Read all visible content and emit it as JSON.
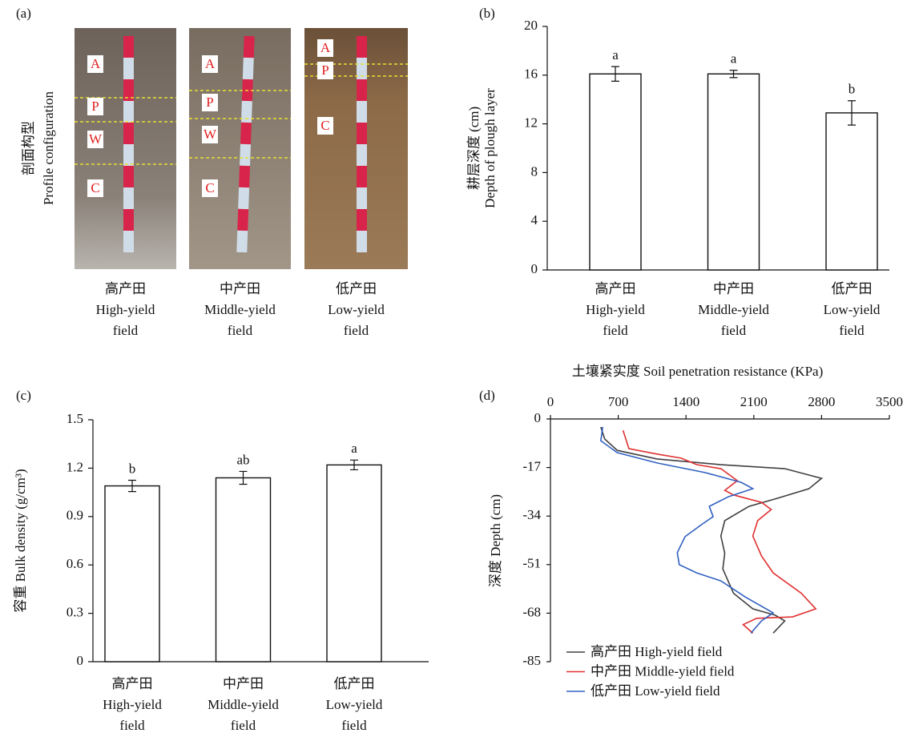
{
  "profile": {
    "label": "(a)",
    "y_label": [
      "剖面构型",
      "Profile configuration"
    ],
    "photos": [
      {
        "layers": [
          "A",
          "P",
          "W",
          "C"
        ],
        "caption": [
          "高产田",
          "High-yield",
          "field"
        ]
      },
      {
        "layers": [
          "A",
          "P",
          "W",
          "C"
        ],
        "caption": [
          "中产田",
          "Middle-yield",
          "field"
        ]
      },
      {
        "layers": [
          "A",
          "P",
          "C"
        ],
        "caption": [
          "低产田",
          "Low-yield",
          "field"
        ]
      }
    ]
  },
  "chart_data": [
    {
      "type": "bar",
      "label": "(b)",
      "y_label": [
        "耕层深度 (cm)",
        "Depth of plough layer"
      ],
      "categories": [
        [
          "高产田",
          "High-yield",
          "field"
        ],
        [
          "中产田",
          "Middle-yield",
          "field"
        ],
        [
          "低产田",
          "Low-yield",
          "field"
        ]
      ],
      "values": [
        16.1,
        16.1,
        12.9
      ],
      "errors": [
        0.6,
        0.3,
        1.0
      ],
      "annotations": [
        "a",
        "a",
        "b"
      ],
      "color": "#ffffff",
      "ylim": [
        0,
        20
      ],
      "yticks": [
        0,
        4,
        8,
        12,
        16,
        20
      ]
    },
    {
      "type": "bar",
      "label": "(c)",
      "y_label": [
        "容重 Bulk density (g/cm³)"
      ],
      "categories": [
        [
          "高产田",
          "High-yield",
          "field"
        ],
        [
          "中产田",
          "Middle-yield",
          "field"
        ],
        [
          "低产田",
          "Low-yield",
          "field"
        ]
      ],
      "values": [
        1.09,
        1.14,
        1.22
      ],
      "errors": [
        0.035,
        0.04,
        0.03
      ],
      "annotations": [
        "b",
        "ab",
        "a"
      ],
      "color": "#ffffff",
      "ylim": [
        0,
        1.5
      ],
      "yticks": [
        0,
        0.3,
        0.6,
        0.9,
        1.2,
        1.5
      ]
    },
    {
      "type": "line",
      "label": "(d)",
      "x_label": "土壤紧实度 Soil penetration resistance (KPa)",
      "y_label": [
        "深度 Depth (cm)"
      ],
      "xlim": [
        0,
        3500
      ],
      "xticks": [
        0,
        700,
        1400,
        2100,
        2800,
        3500
      ],
      "ylim": [
        -85,
        0
      ],
      "yticks": [
        0,
        -17,
        -34,
        -51,
        -68,
        -85
      ],
      "legend": "lower left",
      "series": [
        {
          "name": "高产田 High-yield field",
          "color": "#404040",
          "x": [
            520,
            560,
            690,
            1100,
            1760,
            2420,
            2800,
            2670,
            2340,
            2050,
            1800,
            1760,
            1800,
            1780,
            1890,
            2090,
            2320,
            2420,
            2300
          ],
          "y": [
            -2.8,
            -7,
            -11,
            -14,
            -16,
            -17.4,
            -20.8,
            -24.4,
            -27.8,
            -30.6,
            -35.6,
            -41,
            -47,
            -52.5,
            -61,
            -66.5,
            -68.7,
            -70.7,
            -75
          ]
        },
        {
          "name": "中产田 Middle-yield field",
          "color": "#e03030",
          "x": [
            750,
            810,
            1100,
            1350,
            1510,
            1760,
            1930,
            1800,
            1890,
            2180,
            2280,
            2140,
            2090,
            2180,
            2300,
            2590,
            2740,
            2500,
            2130,
            1990,
            2090
          ],
          "y": [
            -4,
            -10.4,
            -12.3,
            -13.7,
            -16,
            -17.4,
            -21.6,
            -25,
            -26.6,
            -29.2,
            -31.7,
            -35.6,
            -41,
            -48,
            -53.9,
            -61,
            -66.5,
            -69.3,
            -69.8,
            -72,
            -75
          ]
        },
        {
          "name": "低产田 Low-yield field",
          "color": "#3060c0",
          "x": [
            540,
            520,
            690,
            1100,
            1600,
            1970,
            2090,
            1840,
            1640,
            1680,
            1560,
            1390,
            1310,
            1330,
            1510,
            1760,
            2010,
            2300,
            2180,
            2070
          ],
          "y": [
            -2.8,
            -7.6,
            -11.8,
            -15.4,
            -18.8,
            -22.2,
            -24.4,
            -27.2,
            -30.6,
            -34.2,
            -37,
            -41.2,
            -46.8,
            -51,
            -53.9,
            -56.7,
            -62.3,
            -67.9,
            -70.7,
            -75
          ]
        }
      ]
    }
  ]
}
